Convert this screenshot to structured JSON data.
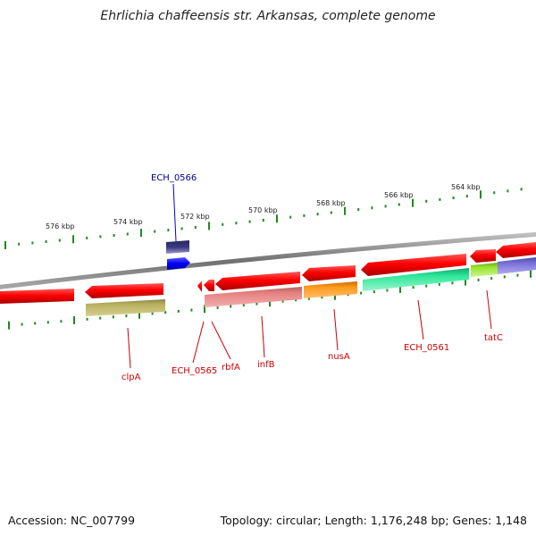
{
  "title": "Ehrlichia chaffeensis str. Arkansas, complete genome",
  "footer": {
    "accession": "Accession: NC_007799",
    "topology": "Topology: circular; Length: 1,176,248 bp; Genes: 1,148"
  },
  "scale_labels": [
    "576 kbp",
    "574 kbp",
    "572 kbp",
    "570 kbp",
    "568 kbp",
    "566 kbp",
    "564 kbp"
  ],
  "gene_labels": [
    {
      "id": "ECH_0566",
      "text": "ECH_0566",
      "color": "#00008b"
    },
    {
      "id": "clpA",
      "text": "clpA",
      "color": "#cc0000"
    },
    {
      "id": "ECH_0565",
      "text": "ECH_0565",
      "color": "#cc0000"
    },
    {
      "id": "rbfA",
      "text": "rbfA",
      "color": "#cc0000"
    },
    {
      "id": "infB",
      "text": "infB",
      "color": "#cc0000"
    },
    {
      "id": "nusA",
      "text": "nusA",
      "color": "#cc0000"
    },
    {
      "id": "ECH_0561",
      "text": "ECH_0561",
      "color": "#cc0000"
    },
    {
      "id": "tatC",
      "text": "tatC",
      "color": "#cc0000"
    }
  ],
  "colors": {
    "cds": "#ff0000",
    "outer_ticks": "#1f8a1f",
    "backbone": "#808080",
    "label_line_red": "#cc0000",
    "label_line_blue": "#0000cc",
    "clpA_feature": "#b8b060",
    "infB_feature": "#e58080",
    "nusA_feature": "#ff9a1a",
    "ECH_0561_feature": "#2ee89a",
    "tatC_feature": "#99e62e",
    "lavender_feature": "#7a70d8",
    "ECH_0566_feature": "#3a3680",
    "blue_gene": "#0000ff"
  }
}
